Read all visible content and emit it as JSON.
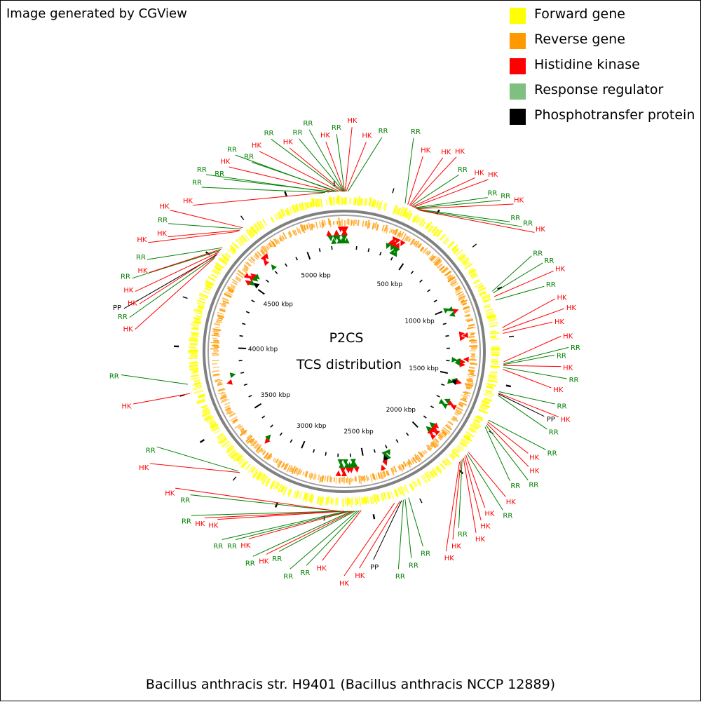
{
  "header": {
    "credit": "Image generated by CGView"
  },
  "legend": {
    "items": [
      {
        "label": "Forward gene",
        "color": "#ffff00"
      },
      {
        "label": "Reverse gene",
        "color": "#ff9900"
      },
      {
        "label": "Histidine kinase",
        "color": "#ff0000"
      },
      {
        "label": "Response regulator",
        "color": "#7fbf7f"
      },
      {
        "label": "Phosphotransfer protein",
        "color": "#000000"
      }
    ]
  },
  "map": {
    "title_line1": "P2CS",
    "title_line2": "TCS distribution",
    "genome_kbp": 5300,
    "ticks": [
      {
        "label": "500 kbp",
        "kbp": 500
      },
      {
        "label": "1000 kbp",
        "kbp": 1000
      },
      {
        "label": "1500 kbp",
        "kbp": 1500
      },
      {
        "label": "2000 kbp",
        "kbp": 2000
      },
      {
        "label": "2500 kbp",
        "kbp": 2500
      },
      {
        "label": "3000 kbp",
        "kbp": 3000
      },
      {
        "label": "3500 kbp",
        "kbp": 3500
      },
      {
        "label": "4000 kbp",
        "kbp": 4000
      },
      {
        "label": "4500 kbp",
        "kbp": 4500
      },
      {
        "label": "5000 kbp",
        "kbp": 5000
      }
    ],
    "colors": {
      "forward": "#ffff00",
      "reverse": "#ff9900",
      "hk": "#ff0000",
      "rr": "#008000",
      "pp": "#000000",
      "backbone": "#808080"
    },
    "features": [
      {
        "t": "HK",
        "kbp": 5190,
        "ang": 314
      },
      {
        "t": "RR",
        "kbp": 5200,
        "ang": 319
      },
      {
        "t": "RR",
        "kbp": 5220,
        "ang": 322
      },
      {
        "t": "RR",
        "kbp": 5235,
        "ang": 325
      },
      {
        "t": "HK",
        "kbp": 5245,
        "ang": 328
      },
      {
        "t": "RR",
        "kbp": 5255,
        "ang": 331
      },
      {
        "t": "RR",
        "kbp": 5265,
        "ang": 334
      },
      {
        "t": "HK",
        "kbp": 5275,
        "ang": 337
      },
      {
        "t": "RR",
        "kbp": 5285,
        "ang": 341
      },
      {
        "t": "HK",
        "kbp": 5292,
        "ang": 345
      },
      {
        "t": "RR",
        "kbp": 5296,
        "ang": 348
      },
      {
        "t": "RR",
        "kbp": 5298,
        "ang": 351
      },
      {
        "t": "HK",
        "kbp": 5300,
        "ang": 355
      },
      {
        "t": "RR",
        "kbp": 2,
        "ang": 358
      },
      {
        "t": "HK",
        "kbp": 5,
        "ang": 2
      },
      {
        "t": "HK",
        "kbp": 10,
        "ang": 6
      },
      {
        "t": "RR",
        "kbp": 20,
        "ang": 10
      },
      {
        "t": "RR",
        "kbp": 330,
        "ang": 18
      },
      {
        "t": "HK",
        "kbp": 345,
        "ang": 22
      },
      {
        "t": "HK",
        "kbp": 355,
        "ang": 27
      },
      {
        "t": "HK",
        "kbp": 360,
        "ang": 30
      },
      {
        "t": "RR",
        "kbp": 365,
        "ang": 33
      },
      {
        "t": "HK",
        "kbp": 372,
        "ang": 37
      },
      {
        "t": "HK",
        "kbp": 378,
        "ang": 40
      },
      {
        "t": "RR",
        "kbp": 384,
        "ang": 43
      },
      {
        "t": "RR",
        "kbp": 390,
        "ang": 46
      },
      {
        "t": "HK",
        "kbp": 396,
        "ang": 49
      },
      {
        "t": "RR",
        "kbp": 402,
        "ang": 52
      },
      {
        "t": "RR",
        "kbp": 408,
        "ang": 55
      },
      {
        "t": "HK",
        "kbp": 415,
        "ang": 58
      },
      {
        "t": "RR",
        "kbp": 1000,
        "ang": 63
      },
      {
        "t": "RR",
        "kbp": 1010,
        "ang": 66
      },
      {
        "t": "HK",
        "kbp": 1030,
        "ang": 69
      },
      {
        "t": "RR",
        "kbp": 1050,
        "ang": 72
      },
      {
        "t": "HK",
        "kbp": 1200,
        "ang": 76
      },
      {
        "t": "HK",
        "kbp": 1215,
        "ang": 79
      },
      {
        "t": "HK",
        "kbp": 1230,
        "ang": 82
      },
      {
        "t": "HK",
        "kbp": 1380,
        "ang": 86
      },
      {
        "t": "RR",
        "kbp": 1390,
        "ang": 89
      },
      {
        "t": "RR",
        "kbp": 1395,
        "ang": 91
      },
      {
        "t": "HK",
        "kbp": 1400,
        "ang": 94
      },
      {
        "t": "RR",
        "kbp": 1410,
        "ang": 97
      },
      {
        "t": "HK",
        "kbp": 1420,
        "ang": 100
      },
      {
        "t": "RR",
        "kbp": 1540,
        "ang": 104
      },
      {
        "t": "HK",
        "kbp": 1548,
        "ang": 107
      },
      {
        "t": "PP",
        "kbp": 1552,
        "ang": 108
      },
      {
        "t": "RR",
        "kbp": 1560,
        "ang": 111
      },
      {
        "t": "RR",
        "kbp": 1700,
        "ang": 116
      },
      {
        "t": "HK",
        "kbp": 1710,
        "ang": 119
      },
      {
        "t": "HK",
        "kbp": 1720,
        "ang": 122
      },
      {
        "t": "RR",
        "kbp": 1730,
        "ang": 125
      },
      {
        "t": "RR",
        "kbp": 1740,
        "ang": 128
      },
      {
        "t": "HK",
        "kbp": 1900,
        "ang": 132
      },
      {
        "t": "RR",
        "kbp": 1910,
        "ang": 135
      },
      {
        "t": "HK",
        "kbp": 1920,
        "ang": 138
      },
      {
        "t": "HK",
        "kbp": 1930,
        "ang": 141
      },
      {
        "t": "HK",
        "kbp": 1940,
        "ang": 144
      },
      {
        "t": "RR",
        "kbp": 1950,
        "ang": 147
      },
      {
        "t": "HK",
        "kbp": 1960,
        "ang": 150
      },
      {
        "t": "HK",
        "kbp": 1970,
        "ang": 153
      },
      {
        "t": "RR",
        "kbp": 2300,
        "ang": 158
      },
      {
        "t": "RR",
        "kbp": 2320,
        "ang": 162
      },
      {
        "t": "RR",
        "kbp": 2330,
        "ang": 166
      },
      {
        "t": "PP",
        "kbp": 2340,
        "ang": 172
      },
      {
        "t": "HK",
        "kbp": 2350,
        "ang": 176
      },
      {
        "t": "HK",
        "kbp": 2380,
        "ang": 180
      },
      {
        "t": "HK",
        "kbp": 2560,
        "ang": 186
      },
      {
        "t": "RR",
        "kbp": 2570,
        "ang": 190
      },
      {
        "t": "RR",
        "kbp": 2580,
        "ang": 194
      },
      {
        "t": "RR",
        "kbp": 2590,
        "ang": 198
      },
      {
        "t": "HK",
        "kbp": 2600,
        "ang": 201
      },
      {
        "t": "RR",
        "kbp": 2610,
        "ang": 204
      },
      {
        "t": "HK",
        "kbp": 2620,
        "ang": 207
      },
      {
        "t": "RR",
        "kbp": 2630,
        "ang": 210
      },
      {
        "t": "RR",
        "kbp": 2640,
        "ang": 213
      },
      {
        "t": "HK",
        "kbp": 2650,
        "ang": 217
      },
      {
        "t": "HK",
        "kbp": 2660,
        "ang": 220
      },
      {
        "t": "RR",
        "kbp": 2670,
        "ang": 223
      },
      {
        "t": "RR",
        "kbp": 2680,
        "ang": 227
      },
      {
        "t": "HK",
        "kbp": 2690,
        "ang": 231
      },
      {
        "t": "HK",
        "kbp": 3250,
        "ang": 240
      },
      {
        "t": "RR",
        "kbp": 3260,
        "ang": 243
      },
      {
        "t": "HK",
        "kbp": 3750,
        "ang": 256
      },
      {
        "t": "RR",
        "kbp": 3800,
        "ang": 264
      },
      {
        "t": "HK",
        "kbp": 4500,
        "ang": 276
      },
      {
        "t": "RR",
        "kbp": 4510,
        "ang": 279
      },
      {
        "t": "PP",
        "kbp": 4520,
        "ang": 281
      },
      {
        "t": "HK",
        "kbp": 4530,
        "ang": 283
      },
      {
        "t": "HK",
        "kbp": 4540,
        "ang": 286
      },
      {
        "t": "RR",
        "kbp": 4550,
        "ang": 289
      },
      {
        "t": "HK",
        "kbp": 4560,
        "ang": 292
      },
      {
        "t": "RR",
        "kbp": 4570,
        "ang": 295
      },
      {
        "t": "HK",
        "kbp": 4690,
        "ang": 299
      },
      {
        "t": "HK",
        "kbp": 4700,
        "ang": 303
      },
      {
        "t": "RR",
        "kbp": 4710,
        "ang": 306
      },
      {
        "t": "HK",
        "kbp": 4720,
        "ang": 309
      }
    ]
  },
  "footer": {
    "organism": "Bacillus anthracis str. H9401 (Bacillus anthracis NCCP 12889)"
  }
}
